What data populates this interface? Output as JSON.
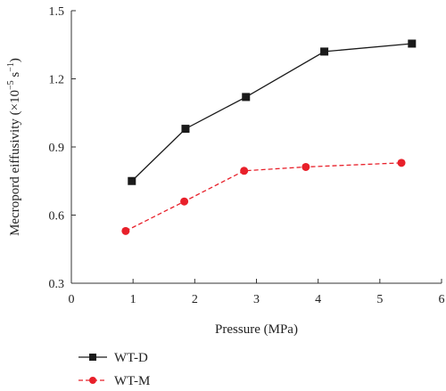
{
  "chart_data": {
    "type": "line",
    "title": "",
    "xlabel": "Pressure (MPa)",
    "ylabel_main": "Mecropord eiffusivity (×10",
    "ylabel_exp1": "−5",
    "ylabel_mid": " s",
    "ylabel_exp2": "−1",
    "ylabel_end": ")",
    "xlim": [
      0,
      6
    ],
    "ylim": [
      0.3,
      1.5
    ],
    "xticks": [
      "0",
      "1",
      "2",
      "3",
      "4",
      "5",
      "6"
    ],
    "yticks": [
      "0.3",
      "0.6",
      "0.9",
      "1.2",
      "1.5"
    ],
    "grid": false,
    "legend_position": "bottom-left",
    "series": [
      {
        "name": "WT-D",
        "color": "#1a1a1a",
        "marker": "square",
        "line_style": "solid",
        "x": [
          0.98,
          1.85,
          2.83,
          4.1,
          5.52
        ],
        "y": [
          0.75,
          0.98,
          1.12,
          1.32,
          1.355
        ]
      },
      {
        "name": "WT-M",
        "color": "#e8202a",
        "marker": "circle",
        "line_style": "dashed",
        "x": [
          0.88,
          1.83,
          2.8,
          3.8,
          5.35
        ],
        "y": [
          0.53,
          0.66,
          0.795,
          0.812,
          0.83
        ]
      }
    ]
  }
}
